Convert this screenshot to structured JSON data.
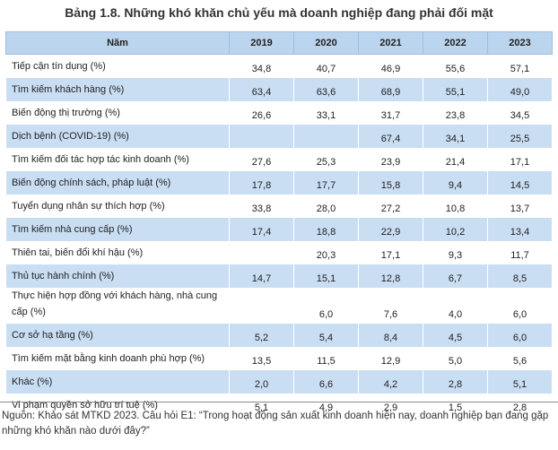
{
  "title": "Bảng 1.8. Những khó khăn chủ yếu mà doanh nghiệp đang phải đối mặt",
  "table": {
    "header": [
      "Năm",
      "2019",
      "2020",
      "2021",
      "2022",
      "2023"
    ],
    "rows": [
      [
        "Tiếp cận tín dụng (%)",
        "34,8",
        "40,7",
        "46,9",
        "55,6",
        "57,1"
      ],
      [
        "Tìm kiếm khách hàng (%)",
        "63,4",
        "63,6",
        "68,9",
        "55,1",
        "49,0"
      ],
      [
        "Biến động thị trường (%)",
        "26,6",
        "33,1",
        "31,7",
        "23,8",
        "34,5"
      ],
      [
        "Dịch bệnh (COVID-19) (%)",
        null,
        null,
        "67,4",
        "34,1",
        "25,5"
      ],
      [
        "Tìm kiếm đối tác hợp tác kinh doanh (%)",
        "27,6",
        "25,3",
        "23,9",
        "21,4",
        "17,1"
      ],
      [
        "Biến động chính sách, pháp luật (%)",
        "17,8",
        "17,7",
        "15,8",
        "9,4",
        "14,5"
      ],
      [
        "Tuyển dụng nhân sự thích hợp (%)",
        "33,8",
        "28,0",
        "27,2",
        "10,8",
        "13,7"
      ],
      [
        "Tìm kiếm nhà cung cấp (%)",
        "17,4",
        "18,8",
        "22,9",
        "10,2",
        "13,4"
      ],
      [
        "Thiên tai, biến đổi khí hậu (%)",
        null,
        "20,3",
        "17,1",
        "9,3",
        "11,7"
      ],
      [
        "Thủ tục hành chính (%)",
        "14,7",
        "15,1",
        "12,8",
        "6,7",
        "8,5"
      ],
      [
        "Thực hiện hợp đồng với khách hàng, nhà cung cấp (%)",
        null,
        "6,0",
        "7,6",
        "4,0",
        "6,0"
      ],
      [
        "Cơ sở hạ tầng (%)",
        "5,2",
        "5,4",
        "8,4",
        "4,5",
        "6,0"
      ],
      [
        "Tìm kiếm mặt bằng kinh doanh phù hợp (%)",
        "13,5",
        "11,5",
        "12,9",
        "5,0",
        "5,6"
      ],
      [
        "Khác (%)",
        "2,0",
        "6,6",
        "4,2",
        "2,8",
        "5,1"
      ],
      [
        "Vi phạm quyền sở hữu trí tuệ (%)",
        "5,1",
        "4,9",
        "2,9",
        "1,5",
        "2,8"
      ]
    ]
  },
  "source": "Nguồn: Khảo sát MTKD 2023. Câu hỏi E1: “Trong hoạt động sản xuất kinh doanh hiện nay, doanh nghiệp bạn đang gặp những khó khăn nào dưới đây?”"
}
